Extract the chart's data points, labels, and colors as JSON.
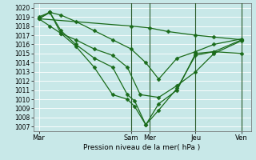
{
  "xlabel": "Pression niveau de la mer( hPa )",
  "bg_color": "#c8e8e8",
  "grid_color": "#ffffff",
  "line_color": "#1a6b1a",
  "ylim": [
    1006.5,
    1020.5
  ],
  "ytick_min": 1007,
  "ytick_max": 1020,
  "xtick_labels": [
    "Mar",
    "Sam",
    "Mer",
    "Jeu",
    "Ven"
  ],
  "xtick_positions": [
    0,
    5,
    6,
    8.5,
    11
  ],
  "xlim": [
    -0.3,
    11.5
  ],
  "vlines": [
    5,
    6,
    8.5,
    11
  ],
  "series": [
    {
      "x": [
        0,
        5,
        6,
        7,
        8.5,
        9.5,
        11
      ],
      "y": [
        1018.8,
        1018.0,
        1017.8,
        1017.4,
        1017.0,
        1016.8,
        1016.5
      ]
    },
    {
      "x": [
        0,
        0.6,
        1.2,
        2,
        3,
        4,
        5,
        5.8,
        6.5,
        7.5,
        8.5,
        9.5,
        11
      ],
      "y": [
        1019.0,
        1019.5,
        1019.2,
        1018.5,
        1017.5,
        1016.5,
        1015.5,
        1014.0,
        1012.2,
        1014.5,
        1015.2,
        1016.0,
        1016.6
      ]
    },
    {
      "x": [
        0,
        0.6,
        1.2,
        2,
        3,
        4,
        4.8,
        5.5,
        6.5,
        7.5,
        8.5,
        9.5,
        11
      ],
      "y": [
        1018.8,
        1018.0,
        1017.2,
        1016.5,
        1015.5,
        1014.8,
        1013.5,
        1010.5,
        1010.2,
        1011.5,
        1013.0,
        1015.0,
        1016.4
      ]
    },
    {
      "x": [
        0,
        0.6,
        1.2,
        2,
        3,
        4,
        4.8,
        5.2,
        5.8,
        6.5,
        7.5,
        8.5,
        9.5,
        11
      ],
      "y": [
        1018.8,
        1019.5,
        1017.5,
        1016.0,
        1014.5,
        1013.5,
        1010.5,
        1009.8,
        1007.2,
        1008.8,
        1011.2,
        1014.8,
        1015.2,
        1016.5
      ]
    },
    {
      "x": [
        0,
        0.6,
        1.2,
        2,
        3,
        4,
        4.8,
        5.2,
        5.8,
        6.5,
        7.5,
        8.5,
        9.5,
        11
      ],
      "y": [
        1018.8,
        1019.5,
        1017.2,
        1015.8,
        1013.5,
        1010.5,
        1010.0,
        1009.2,
        1007.2,
        1009.5,
        1011.0,
        1015.0,
        1015.2,
        1015.0
      ]
    }
  ]
}
